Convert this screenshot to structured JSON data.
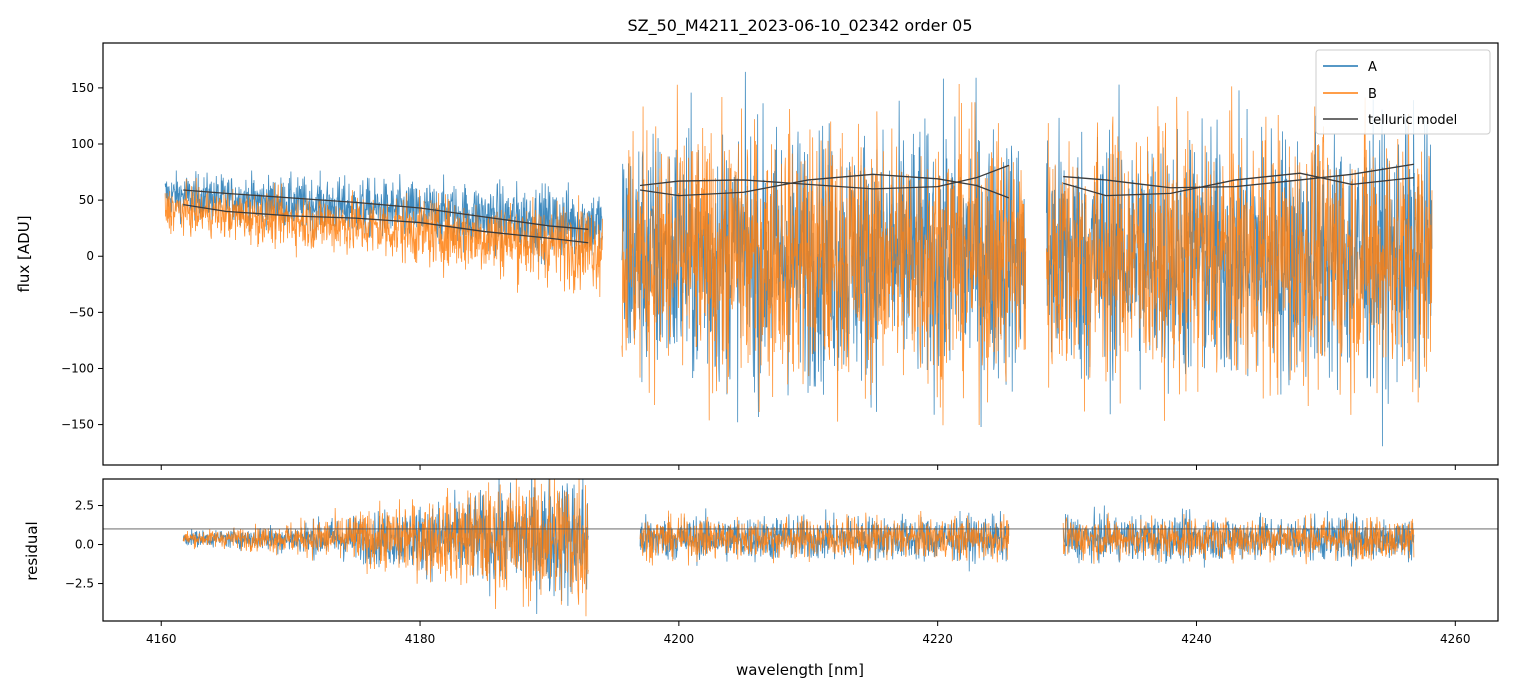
{
  "chart_data": [
    {
      "type": "line",
      "panel": "top",
      "title": "SZ_50_M4211_2023-06-10_02342  order 05",
      "xlabel": "",
      "ylabel": "flux [ADU]",
      "xlim": [
        4155.5,
        4263.3
      ],
      "ylim": [
        -186,
        190
      ],
      "yticks": [
        -150,
        -100,
        -50,
        0,
        50,
        100,
        150
      ],
      "yticklabels": [
        "−150",
        "−100",
        "−50",
        "0",
        "50",
        "100",
        "150"
      ],
      "xticks": [
        4160,
        4180,
        4200,
        4220,
        4240,
        4260
      ],
      "legend": {
        "location": "top-right",
        "entries": [
          "A",
          "B",
          "telluric model"
        ]
      },
      "series": [
        {
          "name": "A",
          "color": "#1f77b4",
          "style": "noisy spectrum",
          "segments": [
            {
              "x": [
                4160.3,
                4194.1
              ],
              "level_start": 55,
              "level_end": 28,
              "noise_start": 16,
              "noise_end": 28
            },
            {
              "x": [
                4195.6,
                4226.8
              ],
              "level_start": 0,
              "level_end": 0,
              "noise_start": 95,
              "noise_end": 95
            },
            {
              "x": [
                4228.4,
                4258.2
              ],
              "level_start": 0,
              "level_end": 0,
              "noise_start": 95,
              "noise_end": 95
            }
          ]
        },
        {
          "name": "B",
          "color": "#ff7f0e",
          "style": "noisy spectrum",
          "segments": [
            {
              "x": [
                4160.3,
                4194.1
              ],
              "level_start": 42,
              "level_end": 8,
              "noise_start": 16,
              "noise_end": 32
            },
            {
              "x": [
                4195.6,
                4226.8
              ],
              "level_start": 0,
              "level_end": 0,
              "noise_start": 95,
              "noise_end": 95
            },
            {
              "x": [
                4228.4,
                4258.2
              ],
              "level_start": 0,
              "level_end": 0,
              "noise_start": 95,
              "noise_end": 95
            }
          ]
        },
        {
          "name": "telluric model",
          "color": "#3b3b3b",
          "style": "smooth curves",
          "curves": [
            {
              "x": [
                4161.7,
                4165,
                4170,
                4175,
                4180,
                4185,
                4190,
                4193.0
              ],
              "y": [
                59,
                56,
                52,
                48,
                43,
                35,
                27,
                24
              ]
            },
            {
              "x": [
                4161.7,
                4165,
                4170,
                4175,
                4180,
                4185,
                4190,
                4193.0
              ],
              "y": [
                46,
                40,
                36,
                34,
                30,
                22,
                16,
                12
              ]
            },
            {
              "x": [
                4197.0,
                4200,
                4205,
                4210,
                4215,
                4220,
                4223,
                4225.5
              ],
              "y": [
                63,
                67,
                68,
                64,
                60,
                62,
                70,
                81
              ]
            },
            {
              "x": [
                4197.0,
                4200,
                4205,
                4210,
                4215,
                4220,
                4223,
                4225.5
              ],
              "y": [
                59,
                54,
                57,
                68,
                73,
                69,
                63,
                52
              ]
            },
            {
              "x": [
                4229.7,
                4233,
                4238,
                4243,
                4248,
                4252,
                4256.8
              ],
              "y": [
                71,
                68,
                61,
                62,
                68,
                73,
                82
              ]
            },
            {
              "x": [
                4229.7,
                4233,
                4238,
                4243,
                4248,
                4252,
                4256.8
              ],
              "y": [
                65,
                54,
                56,
                68,
                74,
                64,
                70
              ]
            }
          ]
        }
      ]
    },
    {
      "type": "line",
      "panel": "bottom",
      "title": "",
      "xlabel": "wavelength [nm]",
      "ylabel": "residual",
      "xlim": [
        4155.5,
        4263.3
      ],
      "ylim": [
        -4.9,
        4.2
      ],
      "xticks": [
        4160,
        4180,
        4200,
        4220,
        4240,
        4260
      ],
      "xticklabels": [
        "4160",
        "4180",
        "4200",
        "4220",
        "4240",
        "4260"
      ],
      "yticks": [
        -2.5,
        0.0,
        2.5
      ],
      "yticklabels": [
        "−2.5",
        "0.0",
        "2.5"
      ],
      "reference_line": {
        "y": 1.0,
        "color": "#555555"
      },
      "series": [
        {
          "name": "A",
          "color": "#1f77b4",
          "style": "noisy residual",
          "segments": [
            {
              "x": [
                4161.7,
                4193.0
              ],
              "level": 0.4,
              "noise_start": 0.45,
              "noise_end": 4.0
            },
            {
              "x": [
                4197.0,
                4225.5
              ],
              "level": 0.4,
              "noise_start": 1.3,
              "noise_end": 1.3
            },
            {
              "x": [
                4229.7,
                4256.8
              ],
              "level": 0.4,
              "noise_start": 1.3,
              "noise_end": 1.3
            }
          ]
        },
        {
          "name": "B",
          "color": "#ff7f0e",
          "style": "noisy residual",
          "segments": [
            {
              "x": [
                4161.7,
                4193.0
              ],
              "level": 0.4,
              "noise_start": 0.45,
              "noise_end": 4.6
            },
            {
              "x": [
                4197.0,
                4225.5
              ],
              "level": 0.4,
              "noise_start": 1.2,
              "noise_end": 1.2
            },
            {
              "x": [
                4229.7,
                4256.8
              ],
              "level": 0.4,
              "noise_start": 1.2,
              "noise_end": 1.2
            }
          ]
        }
      ]
    }
  ]
}
